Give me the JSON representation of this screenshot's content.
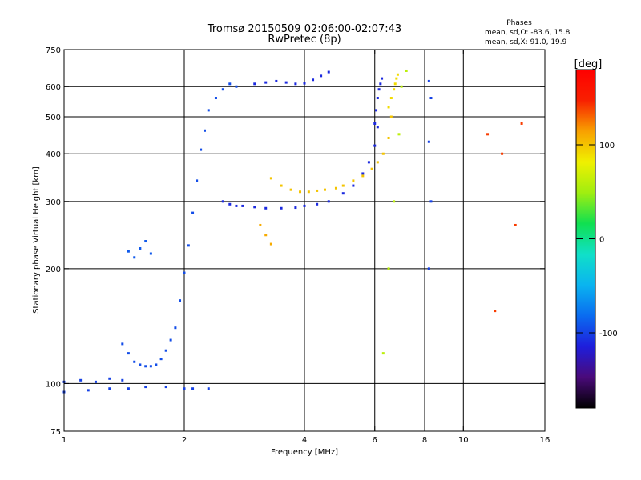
{
  "title_line1": "Tromsø 20150509 02:06:00-02:07:43",
  "title_line2": "RwPretec (8p)",
  "phases": {
    "heading": "Phases",
    "line_o": "mean, sd,O: -83.6, 15.8",
    "line_x": "mean, sd,X:  91.0, 19.9"
  },
  "colorbar": {
    "unit_label": "[deg]",
    "range": [
      -180,
      180
    ],
    "tick_values": [
      100,
      0,
      -100
    ],
    "tick_labels": [
      "100",
      "0",
      "-100"
    ],
    "colors": [
      "#000000",
      "#4a0a7a",
      "#1e1edc",
      "#0a6cf0",
      "#0ab4f0",
      "#10e0c8",
      "#10e050",
      "#a0ee10",
      "#f0f000",
      "#f8a000",
      "#f82000",
      "#ff0000"
    ]
  },
  "chart_data": {
    "type": "scatter",
    "title": "Tromsø 20150509 02:06:00-02:07:43",
    "subtitle": "RwPretec (8p)",
    "xlabel": "Frequency [MHz]",
    "ylabel": "Stationary phase Virtual Height [km]",
    "x_scale": "log",
    "y_scale": "log",
    "xlim": [
      1,
      16
    ],
    "ylim": [
      75,
      750
    ],
    "x_ticks": [
      1,
      2,
      4,
      6,
      8,
      10,
      16
    ],
    "y_ticks": [
      75,
      100,
      200,
      300,
      400,
      500,
      600,
      750
    ],
    "x_grid": [
      2,
      4,
      6,
      8,
      10
    ],
    "y_grid": [
      100,
      200,
      300,
      400,
      500,
      600
    ],
    "color_variable": "phase [deg]",
    "groups": [
      {
        "x": [
          1.0,
          1.15,
          1.3,
          1.45,
          1.6,
          1.8,
          2.0,
          2.1,
          2.3
        ],
        "y": [
          95,
          96,
          97,
          97,
          98,
          98,
          97,
          97,
          97
        ],
        "phase": -100
      },
      {
        "x": [
          1.0,
          1.1,
          1.2,
          1.3,
          1.4
        ],
        "y": [
          101,
          102,
          101,
          103,
          102
        ],
        "phase": -100
      },
      {
        "x": [
          1.4,
          1.45,
          1.5,
          1.55,
          1.6,
          1.65,
          1.7,
          1.75,
          1.8,
          1.85
        ],
        "y": [
          127,
          120,
          114,
          112,
          111,
          111,
          112,
          116,
          122,
          130
        ],
        "phase": -95
      },
      {
        "x": [
          1.45,
          1.5,
          1.55,
          1.6,
          1.65
        ],
        "y": [
          222,
          214,
          226,
          236,
          219
        ],
        "phase": -90
      },
      {
        "x": [
          1.9,
          1.95,
          2.0,
          2.05,
          2.1,
          2.15,
          2.2,
          2.25,
          2.3,
          2.4,
          2.5,
          2.6,
          2.7
        ],
        "y": [
          140,
          165,
          195,
          230,
          280,
          340,
          410,
          460,
          520,
          560,
          590,
          610,
          600
        ],
        "phase": -95
      },
      {
        "x": [
          2.5,
          2.6,
          2.7,
          2.8,
          3.0,
          3.2,
          3.5,
          3.8,
          4.0,
          4.3,
          4.6,
          5.0,
          5.3,
          5.6,
          5.8,
          6.0,
          6.1
        ],
        "y": [
          300,
          295,
          292,
          292,
          290,
          288,
          288,
          289,
          292,
          295,
          300,
          315,
          330,
          355,
          380,
          420,
          470
        ],
        "phase": -110
      },
      {
        "x": [
          6.0,
          6.05,
          6.1,
          6.15,
          6.2,
          6.25
        ],
        "y": [
          480,
          520,
          560,
          590,
          610,
          630
        ],
        "phase": -110
      },
      {
        "x": [
          3.3,
          3.5,
          3.7,
          3.9,
          4.1,
          4.3,
          4.5,
          4.8,
          5.0,
          5.3,
          5.6,
          5.9,
          6.1,
          6.3,
          6.5,
          6.6
        ],
        "y": [
          345,
          330,
          322,
          318,
          318,
          320,
          322,
          325,
          330,
          340,
          350,
          365,
          380,
          400,
          440,
          500
        ],
        "phase": 100
      },
      {
        "x": [
          6.5,
          6.6,
          6.7,
          6.75,
          6.8,
          6.85
        ],
        "y": [
          530,
          560,
          590,
          610,
          630,
          645
        ],
        "phase": 90
      },
      {
        "x": [
          3.0,
          3.2,
          3.4,
          3.6,
          3.8,
          4.0,
          4.2,
          4.4,
          4.6
        ],
        "y": [
          610,
          615,
          620,
          615,
          610,
          612,
          625,
          640,
          655
        ],
        "phase": -110
      },
      {
        "x": [
          3.1,
          3.2,
          3.3
        ],
        "y": [
          260,
          245,
          232
        ],
        "phase": 110
      },
      {
        "x": [
          6.3,
          6.5,
          6.7,
          6.9,
          7.0,
          7.2
        ],
        "y": [
          120,
          200,
          300,
          450,
          600,
          660
        ],
        "phase": 60
      },
      {
        "x": [
          8.2,
          8.3,
          8.2,
          8.3,
          8.2
        ],
        "y": [
          200,
          300,
          430,
          560,
          620
        ],
        "phase": -100
      },
      {
        "x": [
          11.5,
          12.5,
          14.0,
          13.5,
          12.0
        ],
        "y": [
          450,
          400,
          480,
          260,
          155
        ],
        "phase": 140
      }
    ]
  }
}
